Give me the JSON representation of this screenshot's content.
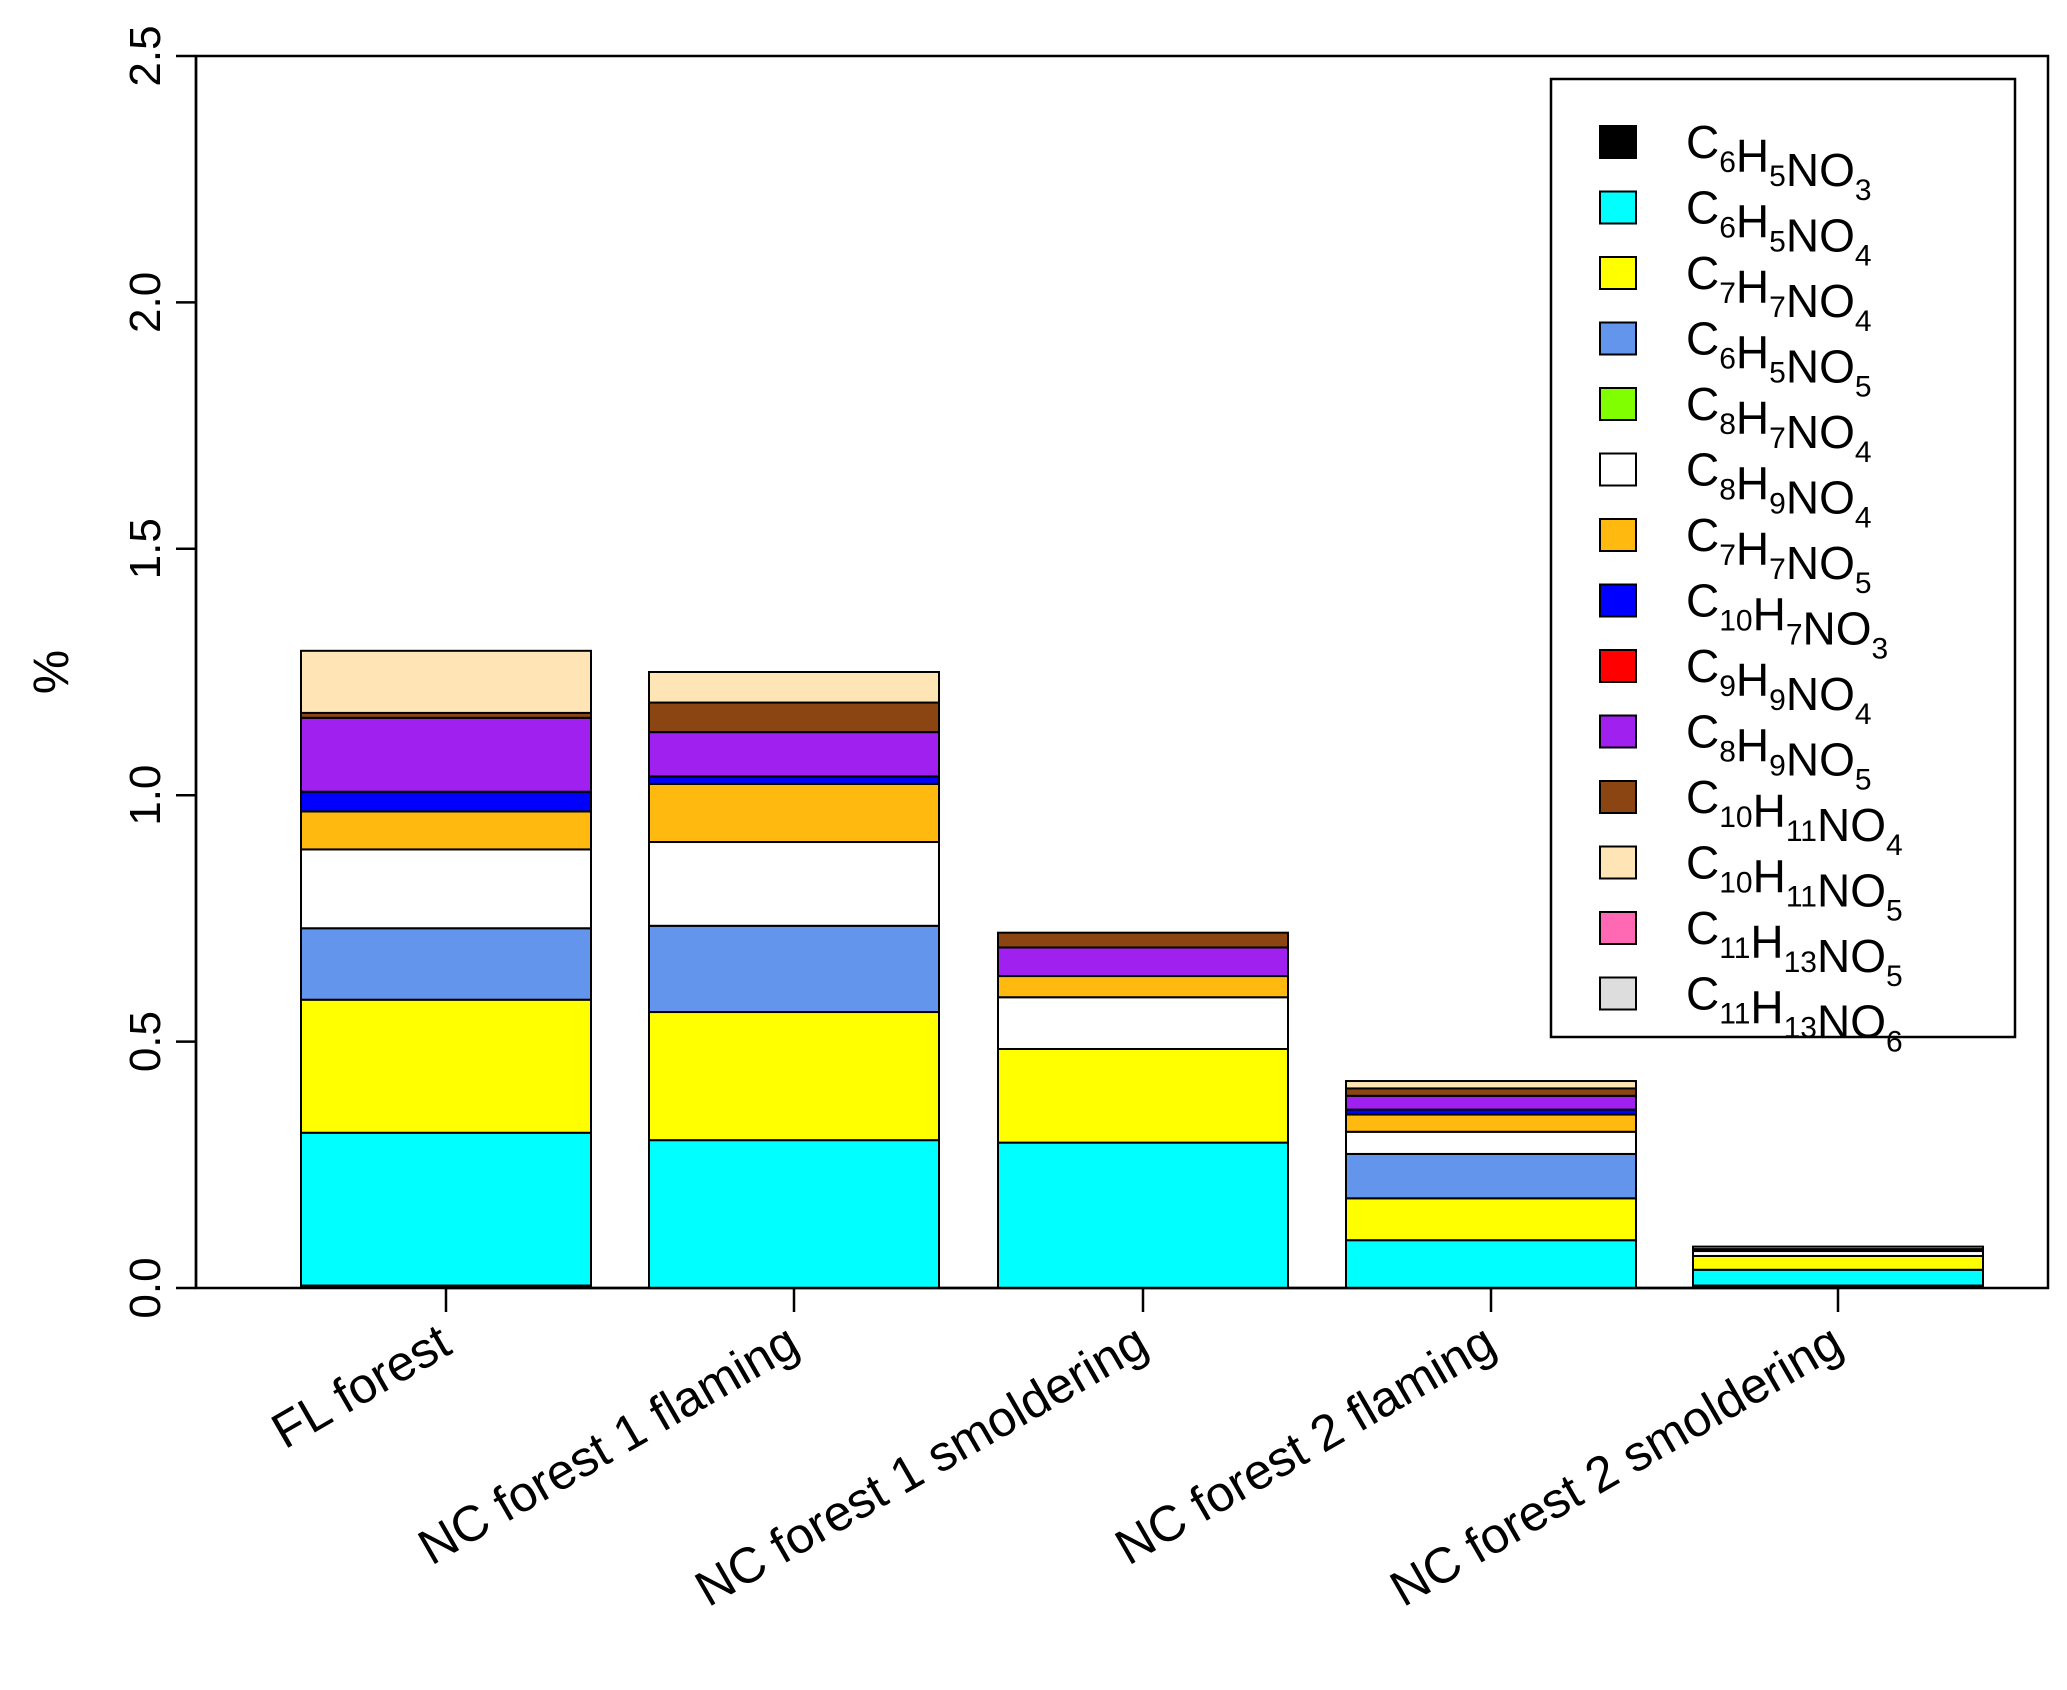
{
  "chart_data": {
    "type": "bar",
    "stacked": true,
    "title": "",
    "xlabel": "",
    "ylabel": "%",
    "ylim": [
      0,
      2.5
    ],
    "y_ticks": [
      "0.0",
      "0.5",
      "1.0",
      "1.5",
      "2.0",
      "2.5"
    ],
    "y_tick_values": [
      0,
      0.5,
      1.0,
      1.5,
      2.0,
      2.5
    ],
    "grid": false,
    "legend_position": "top-right",
    "categories": [
      "FL forest",
      "NC forest 1  flaming",
      "NC forest 1  smoldering",
      "NC forest 2  flaming",
      "NC forest 2  smoldering"
    ],
    "series": [
      {
        "name": "C6H5NO3",
        "label_parts": [
          [
            "C",
            ""
          ],
          [
            "6",
            "sub"
          ],
          [
            "H",
            ""
          ],
          [
            "5",
            "sub"
          ],
          [
            "NO",
            ""
          ],
          [
            "3",
            "sub"
          ]
        ],
        "color": "#000000",
        "values": [
          0.005,
          0.0,
          0.0,
          0.0,
          0.005
        ]
      },
      {
        "name": "C6H5NO4",
        "label_parts": [
          [
            "C",
            ""
          ],
          [
            "6",
            "sub"
          ],
          [
            "H",
            ""
          ],
          [
            "5",
            "sub"
          ],
          [
            "NO",
            ""
          ],
          [
            "4",
            "sub"
          ]
        ],
        "color": "#00FFFF",
        "values": [
          0.31,
          0.3,
          0.295,
          0.097,
          0.032
        ]
      },
      {
        "name": "C7H7NO4",
        "label_parts": [
          [
            "C",
            ""
          ],
          [
            "7",
            "sub"
          ],
          [
            "H",
            ""
          ],
          [
            "7",
            "sub"
          ],
          [
            "NO",
            ""
          ],
          [
            "4",
            "sub"
          ]
        ],
        "color": "#FFFF00",
        "values": [
          0.27,
          0.26,
          0.19,
          0.085,
          0.028
        ]
      },
      {
        "name": "C6H5NO5",
        "label_parts": [
          [
            "C",
            ""
          ],
          [
            "6",
            "sub"
          ],
          [
            "H",
            ""
          ],
          [
            "5",
            "sub"
          ],
          [
            "NO",
            ""
          ],
          [
            "5",
            "sub"
          ]
        ],
        "color": "#6495ED",
        "values": [
          0.145,
          0.175,
          0.0,
          0.09,
          0.0
        ]
      },
      {
        "name": "C8H7NO4",
        "label_parts": [
          [
            "C",
            ""
          ],
          [
            "8",
            "sub"
          ],
          [
            "H",
            ""
          ],
          [
            "7",
            "sub"
          ],
          [
            "NO",
            ""
          ],
          [
            "4",
            "sub"
          ]
        ],
        "color": "#7FFF00",
        "values": [
          0.0,
          0.0,
          0.0,
          0.0,
          0.0
        ]
      },
      {
        "name": "C8H9NO4",
        "label_parts": [
          [
            "C",
            ""
          ],
          [
            "8",
            "sub"
          ],
          [
            "H",
            ""
          ],
          [
            "9",
            "sub"
          ],
          [
            "NO",
            ""
          ],
          [
            "4",
            "sub"
          ]
        ],
        "color": "#FFFFFF",
        "values": [
          0.16,
          0.17,
          0.105,
          0.045,
          0.01
        ]
      },
      {
        "name": "C7H7NO5",
        "label_parts": [
          [
            "C",
            ""
          ],
          [
            "7",
            "sub"
          ],
          [
            "H",
            ""
          ],
          [
            "7",
            "sub"
          ],
          [
            "NO",
            ""
          ],
          [
            "5",
            "sub"
          ]
        ],
        "color": "#FFB90F",
        "values": [
          0.077,
          0.118,
          0.043,
          0.035,
          0.0
        ]
      },
      {
        "name": "C10H7NO3",
        "label_parts": [
          [
            "C",
            ""
          ],
          [
            "10",
            "sub"
          ],
          [
            "H",
            ""
          ],
          [
            "7",
            "sub"
          ],
          [
            "NO",
            ""
          ],
          [
            "3",
            "sub"
          ]
        ],
        "color": "#0000FF",
        "values": [
          0.04,
          0.015,
          0.0,
          0.01,
          0.0
        ]
      },
      {
        "name": "C9H9NO4",
        "label_parts": [
          [
            "C",
            ""
          ],
          [
            "9",
            "sub"
          ],
          [
            "H",
            ""
          ],
          [
            "9",
            "sub"
          ],
          [
            "NO",
            ""
          ],
          [
            "4",
            "sub"
          ]
        ],
        "color": "#FF0000",
        "values": [
          0.0,
          0.0,
          0.0,
          0.0,
          0.0
        ]
      },
      {
        "name": "C8H9NO5",
        "label_parts": [
          [
            "C",
            ""
          ],
          [
            "8",
            "sub"
          ],
          [
            "H",
            ""
          ],
          [
            "9",
            "sub"
          ],
          [
            "NO",
            ""
          ],
          [
            "5",
            "sub"
          ]
        ],
        "color": "#A020F0",
        "values": [
          0.15,
          0.09,
          0.058,
          0.028,
          0.004
        ]
      },
      {
        "name": "C10H11NO4",
        "label_parts": [
          [
            "C",
            ""
          ],
          [
            "10",
            "sub"
          ],
          [
            "H",
            ""
          ],
          [
            "11",
            "sub"
          ],
          [
            "NO",
            ""
          ],
          [
            "4",
            "sub"
          ]
        ],
        "color": "#8B4513",
        "values": [
          0.01,
          0.06,
          0.03,
          0.015,
          0.0
        ]
      },
      {
        "name": "C10H11NO5",
        "label_parts": [
          [
            "C",
            ""
          ],
          [
            "10",
            "sub"
          ],
          [
            "H",
            ""
          ],
          [
            "11",
            "sub"
          ],
          [
            "NO",
            ""
          ],
          [
            "5",
            "sub"
          ]
        ],
        "color": "#FFE4B5",
        "values": [
          0.126,
          0.062,
          0.0,
          0.015,
          0.005
        ]
      },
      {
        "name": "C11H13NO5",
        "label_parts": [
          [
            "C",
            ""
          ],
          [
            "11",
            "sub"
          ],
          [
            "H",
            ""
          ],
          [
            "13",
            "sub"
          ],
          [
            "NO",
            ""
          ],
          [
            "5",
            "sub"
          ]
        ],
        "color": "#FF69B4",
        "values": [
          0.0,
          0.0,
          0.0,
          0.0,
          0.0
        ]
      },
      {
        "name": "C11H13NO6",
        "label_parts": [
          [
            "C",
            ""
          ],
          [
            "11",
            "sub"
          ],
          [
            "H",
            ""
          ],
          [
            "13",
            "sub"
          ],
          [
            "NO",
            ""
          ],
          [
            "6",
            "sub"
          ]
        ],
        "color": "#DDDDDD",
        "values": [
          0.0,
          0.0,
          0.0,
          0.0,
          0.0
        ]
      }
    ]
  }
}
